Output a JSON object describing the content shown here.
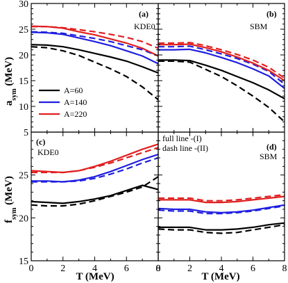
{
  "chart_data": [
    {
      "type": "line",
      "panel": "(a)",
      "label": "KDE0",
      "xlim": [
        0,
        8
      ],
      "ylim": [
        5,
        30
      ],
      "x_ticks": [
        0,
        2,
        4,
        6,
        8
      ],
      "y_ticks": [
        5,
        10,
        15,
        20,
        25,
        30
      ],
      "series": [
        {
          "name": "A=60",
          "style": "full",
          "color": "#000000",
          "x": [
            0,
            1,
            2,
            3,
            4,
            5,
            6,
            7,
            8
          ],
          "values": [
            22.0,
            21.9,
            21.6,
            21.0,
            20.3,
            19.6,
            18.8,
            17.7,
            16.5
          ]
        },
        {
          "style": "dash",
          "color": "#000000",
          "x": [
            0,
            1,
            2,
            3,
            4,
            5,
            6,
            7,
            8
          ],
          "values": [
            21.6,
            21.4,
            20.8,
            19.9,
            18.6,
            17.3,
            15.8,
            13.8,
            11.3
          ]
        },
        {
          "name": "A=140",
          "style": "full",
          "color": "#1f1fe0",
          "x": [
            0,
            1,
            2,
            3,
            4,
            5,
            6,
            7,
            8
          ],
          "values": [
            24.4,
            24.3,
            24.0,
            23.3,
            22.6,
            21.8,
            20.8,
            19.8,
            18.3
          ]
        },
        {
          "style": "dash",
          "color": "#1f1fe0",
          "x": [
            0,
            1,
            2,
            3,
            4,
            5,
            6,
            7,
            8
          ],
          "values": [
            24.5,
            24.4,
            24.2,
            23.7,
            23.2,
            22.6,
            21.8,
            21.0,
            19.8
          ]
        },
        {
          "name": "A=220",
          "style": "full",
          "color": "#e01f1f",
          "x": [
            0,
            1,
            2,
            3,
            4,
            5,
            6,
            7,
            8
          ],
          "values": [
            25.6,
            25.5,
            25.2,
            24.5,
            23.9,
            23.1,
            22.3,
            21.3,
            19.8
          ]
        },
        {
          "style": "dash",
          "color": "#e01f1f",
          "x": [
            0,
            1,
            2,
            3,
            4,
            5,
            6,
            7,
            8
          ],
          "values": [
            25.5,
            25.5,
            25.3,
            24.9,
            24.5,
            24.0,
            23.4,
            22.6,
            21.3
          ]
        }
      ]
    },
    {
      "type": "line",
      "panel": "(b)",
      "label": "SBM",
      "xlim": [
        0,
        8
      ],
      "ylim": [
        5,
        30
      ],
      "x_ticks": [
        0,
        2,
        4,
        6,
        8
      ],
      "series": [
        {
          "style": "full",
          "color": "#000000",
          "x": [
            0,
            1,
            2,
            3,
            4,
            5,
            6,
            7,
            8
          ],
          "values": [
            19.0,
            19.0,
            18.9,
            18.0,
            17.0,
            15.8,
            14.6,
            13.2,
            11.5
          ]
        },
        {
          "style": "dash",
          "color": "#000000",
          "x": [
            0,
            1,
            2,
            3,
            4,
            5,
            6,
            7,
            8
          ],
          "values": [
            18.8,
            18.8,
            18.6,
            17.2,
            15.8,
            14.0,
            12.0,
            9.8,
            7.0
          ]
        },
        {
          "style": "full",
          "color": "#1f1fe0",
          "x": [
            0,
            1,
            2,
            3,
            4,
            5,
            6,
            7,
            8
          ],
          "values": [
            21.0,
            21.0,
            21.1,
            20.4,
            19.5,
            18.5,
            17.3,
            15.9,
            13.5
          ]
        },
        {
          "style": "dash",
          "color": "#1f1fe0",
          "x": [
            0,
            1,
            2,
            3,
            4,
            5,
            6,
            7,
            8
          ],
          "values": [
            21.6,
            21.6,
            21.7,
            21.0,
            20.2,
            19.3,
            18.2,
            16.8,
            14.3
          ]
        },
        {
          "style": "full",
          "color": "#e01f1f",
          "x": [
            0,
            1,
            2,
            3,
            4,
            5,
            6,
            7,
            8
          ],
          "values": [
            22.0,
            22.0,
            22.1,
            21.4,
            20.6,
            19.6,
            18.4,
            17.0,
            15.0
          ]
        },
        {
          "style": "dash",
          "color": "#e01f1f",
          "x": [
            0,
            1,
            2,
            3,
            4,
            5,
            6,
            7,
            8
          ],
          "values": [
            22.3,
            22.3,
            22.4,
            21.8,
            21.0,
            20.1,
            19.0,
            17.6,
            15.5
          ]
        }
      ]
    },
    {
      "type": "line",
      "panel": "(c)",
      "label": "KDE0",
      "xlim": [
        0,
        8
      ],
      "ylim": [
        15,
        30
      ],
      "x_ticks": [
        0,
        2,
        4,
        6,
        8
      ],
      "y_ticks": [
        15,
        20,
        25
      ],
      "series": [
        {
          "style": "full",
          "color": "#000000",
          "x": [
            0,
            1,
            2,
            3,
            4,
            5,
            6,
            7,
            8
          ],
          "values": [
            21.9,
            21.8,
            21.7,
            21.9,
            22.2,
            22.6,
            23.2,
            23.8,
            23.3
          ]
        },
        {
          "style": "dash",
          "color": "#000000",
          "x": [
            0,
            1,
            2,
            3,
            4,
            5,
            6,
            7,
            8
          ],
          "values": [
            21.5,
            21.4,
            21.4,
            21.6,
            22.0,
            22.5,
            23.0,
            23.6,
            24.8
          ]
        },
        {
          "style": "full",
          "color": "#1f1fe0",
          "x": [
            0,
            1,
            2,
            3,
            4,
            5,
            6,
            7,
            8
          ],
          "values": [
            24.3,
            24.3,
            24.2,
            24.4,
            24.8,
            25.4,
            26.1,
            26.8,
            27.4
          ]
        },
        {
          "style": "dash",
          "color": "#1f1fe0",
          "x": [
            0,
            1,
            2,
            3,
            4,
            5,
            6,
            7,
            8
          ],
          "values": [
            24.2,
            24.2,
            24.2,
            24.3,
            24.6,
            25.1,
            25.7,
            26.4,
            27.0
          ]
        },
        {
          "style": "full",
          "color": "#e01f1f",
          "x": [
            0,
            1,
            2,
            3,
            4,
            5,
            6,
            7,
            8
          ],
          "values": [
            25.5,
            25.4,
            25.3,
            25.5,
            26.0,
            26.6,
            27.3,
            28.0,
            28.6
          ]
        },
        {
          "style": "dash",
          "color": "#e01f1f",
          "x": [
            0,
            1,
            2,
            3,
            4,
            5,
            6,
            7,
            8
          ],
          "values": [
            25.3,
            25.3,
            25.3,
            25.5,
            25.9,
            26.4,
            27.0,
            27.6,
            28.2
          ]
        }
      ]
    },
    {
      "type": "line",
      "panel": "(d)",
      "label": "SBM",
      "xlim": [
        0,
        8
      ],
      "ylim": [
        15,
        30
      ],
      "x_ticks": [
        0,
        2,
        4,
        6,
        8
      ],
      "annotations": [
        "full line -(I)",
        "dash line -(II)"
      ],
      "series": [
        {
          "style": "full",
          "color": "#000000",
          "x": [
            0,
            1,
            2,
            3,
            4,
            5,
            6,
            7,
            8
          ],
          "values": [
            18.9,
            18.9,
            18.9,
            18.6,
            18.6,
            18.7,
            18.9,
            19.2,
            19.4
          ]
        },
        {
          "style": "dash",
          "color": "#000000",
          "x": [
            0,
            1,
            2,
            3,
            4,
            5,
            6,
            7,
            8
          ],
          "values": [
            18.7,
            18.6,
            18.6,
            18.3,
            18.2,
            18.3,
            18.6,
            18.9,
            19.2
          ]
        },
        {
          "style": "full",
          "color": "#1f1fe0",
          "x": [
            0,
            1,
            2,
            3,
            4,
            5,
            6,
            7,
            8
          ],
          "values": [
            21.1,
            21.0,
            21.0,
            20.7,
            20.6,
            20.7,
            20.9,
            21.2,
            21.5
          ]
        },
        {
          "style": "dash",
          "color": "#1f1fe0",
          "x": [
            0,
            1,
            2,
            3,
            4,
            5,
            6,
            7,
            8
          ],
          "values": [
            20.9,
            20.8,
            20.8,
            20.5,
            20.5,
            20.6,
            20.8,
            21.1,
            21.4
          ]
        },
        {
          "style": "full",
          "color": "#e01f1f",
          "x": [
            0,
            1,
            2,
            3,
            4,
            5,
            6,
            7,
            8
          ],
          "values": [
            22.1,
            22.1,
            22.1,
            21.8,
            21.8,
            21.9,
            22.1,
            22.3,
            22.5
          ]
        },
        {
          "style": "dash",
          "color": "#e01f1f",
          "x": [
            0,
            1,
            2,
            3,
            4,
            5,
            6,
            7,
            8
          ],
          "values": [
            22.3,
            22.3,
            22.3,
            22.0,
            22.0,
            22.1,
            22.3,
            22.5,
            22.7
          ]
        }
      ]
    }
  ],
  "axes": {
    "y_top": {
      "main": "a",
      "sub": "sym",
      "unit": " (MeV)"
    },
    "y_bottom": {
      "main": "f",
      "sub": "sym",
      "unit": " (MeV)"
    },
    "x_left": "T (MeV)",
    "x_right": "T (MeV)"
  },
  "legend": {
    "position": "left-middle of panel (a)",
    "entries": [
      {
        "label": "A=60",
        "color": "#000000"
      },
      {
        "label": "A=140",
        "color": "#1f1fe0"
      },
      {
        "label": "A=220",
        "color": "#e01f1f"
      }
    ]
  }
}
